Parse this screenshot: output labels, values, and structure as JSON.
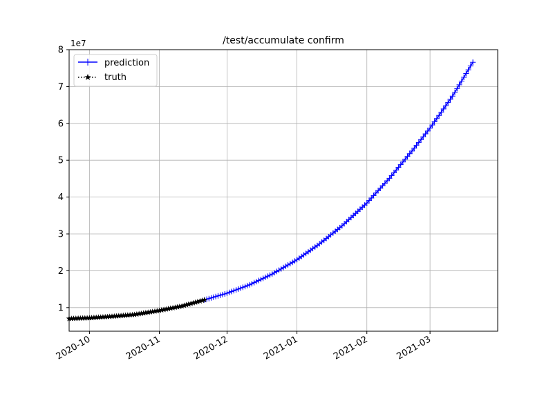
{
  "chart_data": {
    "type": "line",
    "title": "/test/accumulate confirm",
    "xlabel": "",
    "ylabel": "",
    "y_offset_label": "1e7",
    "x_ticks": [
      {
        "date": "2020-10-01",
        "label": "2020-10"
      },
      {
        "date": "2020-11-01",
        "label": "2020-11"
      },
      {
        "date": "2020-12-01",
        "label": "2020-12"
      },
      {
        "date": "2021-01-01",
        "label": "2021-01"
      },
      {
        "date": "2021-02-01",
        "label": "2021-02"
      },
      {
        "date": "2021-03-01",
        "label": "2021-03"
      }
    ],
    "y_ticks": [
      {
        "value": 1,
        "label": "1"
      },
      {
        "value": 2,
        "label": "2"
      },
      {
        "value": 3,
        "label": "3"
      },
      {
        "value": 4,
        "label": "4"
      },
      {
        "value": 5,
        "label": "5"
      },
      {
        "value": 6,
        "label": "6"
      },
      {
        "value": 7,
        "label": "7"
      },
      {
        "value": 8,
        "label": "8"
      }
    ],
    "xlim": [
      "2020-09-22",
      "2021-03-31"
    ],
    "ylim": [
      0.36,
      8.0
    ],
    "grid": true,
    "legend_position": "top-left",
    "series": [
      {
        "name": "prediction",
        "color": "#0000ff",
        "line_style": "solid",
        "marker": "+",
        "start_date": "2020-11-21",
        "end_date": "2021-03-20",
        "points": [
          [
            "2020-11-21",
            1.21
          ],
          [
            "2020-12-01",
            1.39
          ],
          [
            "2020-12-11",
            1.62
          ],
          [
            "2020-12-21",
            1.91
          ],
          [
            "2021-01-01",
            2.3
          ],
          [
            "2021-01-11",
            2.73
          ],
          [
            "2021-01-21",
            3.22
          ],
          [
            "2021-02-01",
            3.84
          ],
          [
            "2021-02-11",
            4.51
          ],
          [
            "2021-02-21",
            5.25
          ],
          [
            "2021-03-01",
            5.87
          ],
          [
            "2021-03-11",
            6.74
          ],
          [
            "2021-03-20",
            7.66
          ]
        ]
      },
      {
        "name": "truth",
        "color": "#000000",
        "line_style": "dotted",
        "marker": "*",
        "start_date": "2020-09-22",
        "end_date": "2020-11-21",
        "points": [
          [
            "2020-09-22",
            0.7
          ],
          [
            "2020-10-01",
            0.72
          ],
          [
            "2020-10-11",
            0.76
          ],
          [
            "2020-10-21",
            0.81
          ],
          [
            "2020-11-01",
            0.92
          ],
          [
            "2020-11-11",
            1.04
          ],
          [
            "2020-11-21",
            1.21
          ]
        ]
      }
    ]
  }
}
